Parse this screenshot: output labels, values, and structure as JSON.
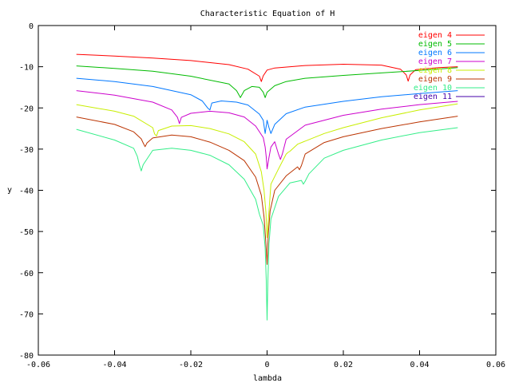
{
  "chart_data": {
    "type": "line",
    "title": "Characteristic Equation of H",
    "xlabel": "lambda",
    "ylabel": "y",
    "xlim": [
      -0.06,
      0.06
    ],
    "ylim": [
      -80,
      0
    ],
    "x_ticks": [
      -0.06,
      -0.04,
      -0.02,
      0,
      0.02,
      0.04,
      0.06
    ],
    "x_tick_labels": [
      "-0.06",
      "-0.04",
      "-0.02",
      "0",
      "0.02",
      "0.04",
      "0.06"
    ],
    "y_ticks": [
      0,
      -10,
      -20,
      -30,
      -40,
      -50,
      -60,
      -70,
      -80
    ],
    "y_tick_labels": [
      "0",
      "-10",
      "-20",
      "-30",
      "-40",
      "-50",
      "-60",
      "-70",
      "-80"
    ],
    "grid": false,
    "legend_position": "top-right",
    "series": [
      {
        "name": "eigen 4",
        "color": "#ff0000",
        "x": [
          -0.05,
          -0.04,
          -0.03,
          -0.02,
          -0.01,
          -0.005,
          -0.002,
          -0.0015,
          -0.001,
          0,
          0.002,
          0.01,
          0.02,
          0.03,
          0.035,
          0.0365,
          0.037,
          0.0375,
          0.039,
          0.045,
          0.05
        ],
        "y": [
          -7,
          -7.4,
          -7.9,
          -8.5,
          -9.5,
          -10.6,
          -12.3,
          -13.6,
          -12.2,
          -10.8,
          -10.3,
          -9.7,
          -9.4,
          -9.6,
          -10.6,
          -12,
          -13.5,
          -12,
          -10.7,
          -10.2,
          -10
        ]
      },
      {
        "name": "eigen 5",
        "color": "#00bb00",
        "x": [
          -0.05,
          -0.04,
          -0.03,
          -0.02,
          -0.01,
          -0.008,
          -0.007,
          -0.006,
          -0.004,
          -0.002,
          -0.001,
          -0.0005,
          0,
          0.002,
          0.005,
          0.01,
          0.02,
          0.03,
          0.04,
          0.05
        ],
        "y": [
          -9.8,
          -10.4,
          -11.1,
          -12.3,
          -14.2,
          -15.8,
          -17.5,
          -15.8,
          -14.8,
          -15,
          -16.2,
          -17.5,
          -16.2,
          -14.6,
          -13.6,
          -12.8,
          -12.1,
          -11.5,
          -10.9,
          -10.2
        ]
      },
      {
        "name": "eigen 6",
        "color": "#0077ff",
        "x": [
          -0.05,
          -0.04,
          -0.03,
          -0.02,
          -0.017,
          -0.0155,
          -0.015,
          -0.0145,
          -0.012,
          -0.008,
          -0.005,
          -0.002,
          -0.001,
          -0.0005,
          0,
          0.0005,
          0.001,
          0.002,
          0.005,
          0.01,
          0.02,
          0.03,
          0.04,
          0.05
        ],
        "y": [
          -12.8,
          -13.6,
          -14.8,
          -16.8,
          -18.3,
          -20.1,
          -20.5,
          -18.8,
          -18.3,
          -18.6,
          -19.3,
          -21.5,
          -23,
          -26.2,
          -23,
          -24.8,
          -26.2,
          -24,
          -21.4,
          -19.8,
          -18.4,
          -17.3,
          -16.5,
          -15.8
        ]
      },
      {
        "name": "eigen 7",
        "color": "#cc00cc",
        "x": [
          -0.05,
          -0.04,
          -0.03,
          -0.025,
          -0.0235,
          -0.023,
          -0.0225,
          -0.02,
          -0.015,
          -0.01,
          -0.006,
          -0.003,
          -0.001,
          -0.0005,
          -0.0002,
          0,
          0.0005,
          0.001,
          0.002,
          0.003,
          0.0035,
          0.004,
          0.005,
          0.01,
          0.02,
          0.03,
          0.04,
          0.05
        ],
        "y": [
          -15.8,
          -16.9,
          -18.6,
          -20.5,
          -22.3,
          -23.8,
          -22.3,
          -21.3,
          -20.8,
          -21.2,
          -22.2,
          -24.4,
          -27.2,
          -29.5,
          -32,
          -34.8,
          -32,
          -29.5,
          -28.2,
          -31.2,
          -32.5,
          -31.2,
          -27.6,
          -24.2,
          -21.8,
          -20.3,
          -19.2,
          -18.4
        ]
      },
      {
        "name": "eigen 8",
        "color": "#c8ee00",
        "x": [
          -0.05,
          -0.04,
          -0.035,
          -0.03,
          -0.0295,
          -0.029,
          -0.0285,
          -0.025,
          -0.02,
          -0.015,
          -0.01,
          -0.006,
          -0.003,
          -0.0015,
          -0.0008,
          -0.0003,
          0,
          0.0005,
          0.001,
          0.003,
          0.005,
          0.0055,
          0.006,
          0.008,
          0.015,
          0.02,
          0.03,
          0.04,
          0.05
        ],
        "y": [
          -19.2,
          -20.8,
          -22,
          -24.8,
          -26.3,
          -26.8,
          -25.5,
          -24.4,
          -24.3,
          -25,
          -26.3,
          -28.2,
          -31.2,
          -35.5,
          -40,
          -45.5,
          -51.5,
          -45,
          -38.5,
          -34.8,
          -31.2,
          -30.8,
          -30.5,
          -28.8,
          -26.2,
          -24.8,
          -22.4,
          -20.5,
          -19
        ]
      },
      {
        "name": "eigen 9",
        "color": "#bb3300",
        "x": [
          -0.05,
          -0.04,
          -0.035,
          -0.033,
          -0.0325,
          -0.032,
          -0.0315,
          -0.03,
          -0.025,
          -0.02,
          -0.015,
          -0.01,
          -0.006,
          -0.003,
          -0.0015,
          -0.0008,
          -0.0003,
          0,
          0.0003,
          0.0008,
          0.002,
          0.005,
          0.008,
          0.0085,
          0.009,
          0.01,
          0.015,
          0.02,
          0.03,
          0.04,
          0.05
        ],
        "y": [
          -22.2,
          -24,
          -25.8,
          -27.5,
          -28.5,
          -29.4,
          -28.5,
          -27.3,
          -26.6,
          -27,
          -28.3,
          -30.3,
          -32.8,
          -36.8,
          -41.2,
          -46.5,
          -53,
          -58,
          -51,
          -45,
          -40,
          -36.5,
          -34.3,
          -35,
          -34,
          -31.2,
          -28.4,
          -27,
          -25,
          -23.4,
          -22
        ]
      },
      {
        "name": "eigen 10",
        "color": "#33ee88",
        "x": [
          -0.05,
          -0.04,
          -0.035,
          -0.034,
          -0.0335,
          -0.033,
          -0.0325,
          -0.03,
          -0.025,
          -0.02,
          -0.015,
          -0.01,
          -0.006,
          -0.003,
          -0.002,
          -0.001,
          -0.0005,
          -0.0002,
          0,
          0.0002,
          0.0005,
          0.001,
          0.003,
          0.006,
          0.009,
          0.0095,
          0.01,
          0.011,
          0.015,
          0.02,
          0.03,
          0.04,
          0.05
        ],
        "y": [
          -25.2,
          -27.8,
          -29.8,
          -31.8,
          -33.8,
          -35.3,
          -33.8,
          -30.3,
          -29.8,
          -30.3,
          -31.5,
          -33.8,
          -37.3,
          -42.2,
          -45.8,
          -48.5,
          -54,
          -62,
          -71.5,
          -62,
          -53,
          -47,
          -41.5,
          -38.2,
          -37.6,
          -38.5,
          -37.8,
          -36,
          -32.2,
          -30.3,
          -27.8,
          -26,
          -24.8
        ]
      },
      {
        "name": "eigen 11",
        "color": "#4400aa",
        "x": [],
        "y": []
      }
    ]
  }
}
